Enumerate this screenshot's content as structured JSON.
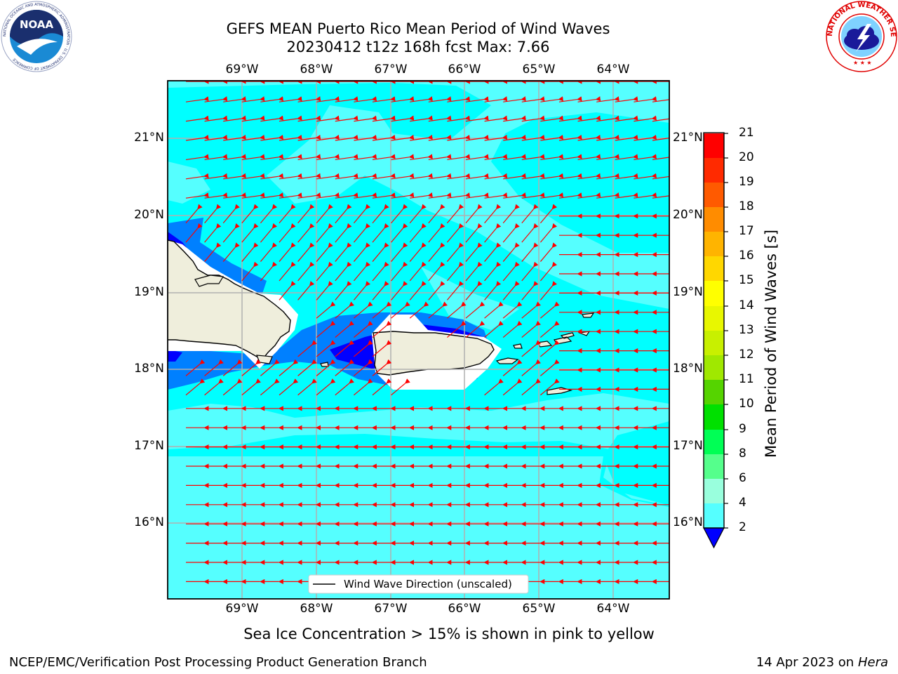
{
  "title_line1": "GEFS MEAN Puerto Rico Mean Period of Wind Waves",
  "title_line2": "20230412 t12z 168h fcst   Max: 7.66",
  "lon_labels": [
    "69°W",
    "68°W",
    "67°W",
    "66°W",
    "65°W",
    "64°W"
  ],
  "lat_labels": [
    "21°N",
    "20°N",
    "19°N",
    "18°N",
    "17°N",
    "16°N"
  ],
  "legend_label": "Wind Wave Direction (unscaled)",
  "colorbar": {
    "label": "Mean Period of Wind Waves [s]",
    "ticks": [
      "21",
      "20",
      "19",
      "18",
      "17",
      "16",
      "15",
      "14",
      "13",
      "12",
      "11",
      "10",
      "9",
      "8",
      "6",
      "4",
      "2"
    ],
    "colors": [
      "#ff0000",
      "#ff2a00",
      "#ff5a00",
      "#ff8c00",
      "#ffb400",
      "#ffd700",
      "#ffff00",
      "#e8f700",
      "#c8f000",
      "#a0e800",
      "#55d400",
      "#00e000",
      "#00ff55",
      "#55ff8c",
      "#99ffdd",
      "#55ffff",
      "#00ffff",
      "#0080ff",
      "#0000ff"
    ]
  },
  "sea_ice_note": "Sea Ice Concentration > 15% is shown in pink to yellow",
  "footer_left": "NCEP/EMC/Verification Post Processing Product Generation Branch",
  "footer_right_prefix": "14 Apr 2023 on ",
  "footer_right_host": "Hera",
  "logos": {
    "noaa_text": "NOAA",
    "noaa_ring": "NATIONAL OCEANIC AND ATMOSPHERIC ADMINISTRATION · U.S. DEPARTMENT OF COMMERCE",
    "nws_ring": "NATIONAL WEATHER SERVICE"
  },
  "colors": {
    "ocean": "#00ffff",
    "light_band": "#55ffff",
    "mid_blue": "#0080ff",
    "deep_blue": "#0000ff",
    "land": "#efeedc",
    "arrow": "#ff0000"
  }
}
